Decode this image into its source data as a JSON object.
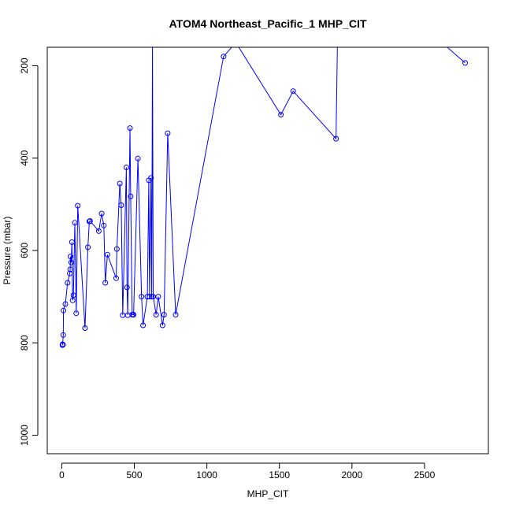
{
  "chart_data": {
    "type": "scatter",
    "title": "ATOM4 Northeast_Pacific_1 MHP_CIT",
    "xlabel": "MHP_CIT",
    "ylabel": "Pressure (mbar)",
    "xlim": [
      -100,
      2940
    ],
    "ylim": [
      1040,
      160
    ],
    "y_reversed": true,
    "x_ticks": [
      0,
      500,
      1000,
      1500,
      2000,
      2500
    ],
    "x_tick_labels": [
      "0",
      "500",
      "1000",
      "1500",
      "2000",
      "2500"
    ],
    "y_ticks": [
      200,
      400,
      600,
      800,
      1000
    ],
    "y_tick_labels": [
      "200",
      "400",
      "600",
      "800",
      "1000"
    ],
    "grid": false,
    "style": {
      "color": "#0000ff",
      "marker": "open-circle",
      "connected": true
    },
    "series": [
      {
        "points": [
          [
            5,
            805
          ],
          [
            8,
            804
          ],
          [
            6,
            803
          ],
          [
            10,
            783
          ],
          [
            12,
            730
          ],
          [
            25,
            716
          ],
          [
            40,
            670
          ],
          [
            55,
            650
          ],
          [
            58,
            641
          ],
          [
            60,
            613
          ],
          [
            65,
            626
          ],
          [
            70,
            582
          ],
          [
            75,
            708
          ],
          [
            80,
            697
          ],
          [
            90,
            540
          ],
          [
            100,
            736
          ],
          [
            110,
            503
          ],
          [
            160,
            768
          ],
          [
            180,
            593
          ],
          [
            190,
            537
          ],
          [
            195,
            536
          ],
          [
            255,
            558
          ],
          [
            275,
            520
          ],
          [
            290,
            546
          ],
          [
            300,
            670
          ],
          [
            315,
            609
          ],
          [
            375,
            660
          ],
          [
            380,
            597
          ],
          [
            400,
            455
          ],
          [
            410,
            502
          ],
          [
            420,
            740
          ],
          [
            445,
            420
          ],
          [
            450,
            680
          ],
          [
            455,
            740
          ],
          [
            470,
            335
          ],
          [
            475,
            483
          ],
          [
            485,
            739
          ],
          [
            492,
            739
          ],
          [
            495,
            739
          ],
          [
            525,
            401
          ],
          [
            550,
            700
          ],
          [
            560,
            762
          ],
          [
            590,
            700
          ],
          [
            600,
            448
          ],
          [
            605,
            700
          ],
          [
            615,
            443
          ],
          [
            620,
            700
          ],
          [
            625,
            150
          ],
          [
            630,
            700
          ],
          [
            650,
            739
          ],
          [
            665,
            700
          ],
          [
            695,
            762
          ],
          [
            705,
            739
          ],
          [
            730,
            346
          ],
          [
            785,
            739
          ],
          [
            1115,
            180
          ],
          [
            1200,
            150
          ],
          [
            1510,
            306
          ],
          [
            1595,
            255
          ],
          [
            1890,
            358
          ],
          [
            1900,
            150
          ],
          [
            2620,
            150
          ],
          [
            2780,
            194
          ]
        ]
      }
    ]
  }
}
